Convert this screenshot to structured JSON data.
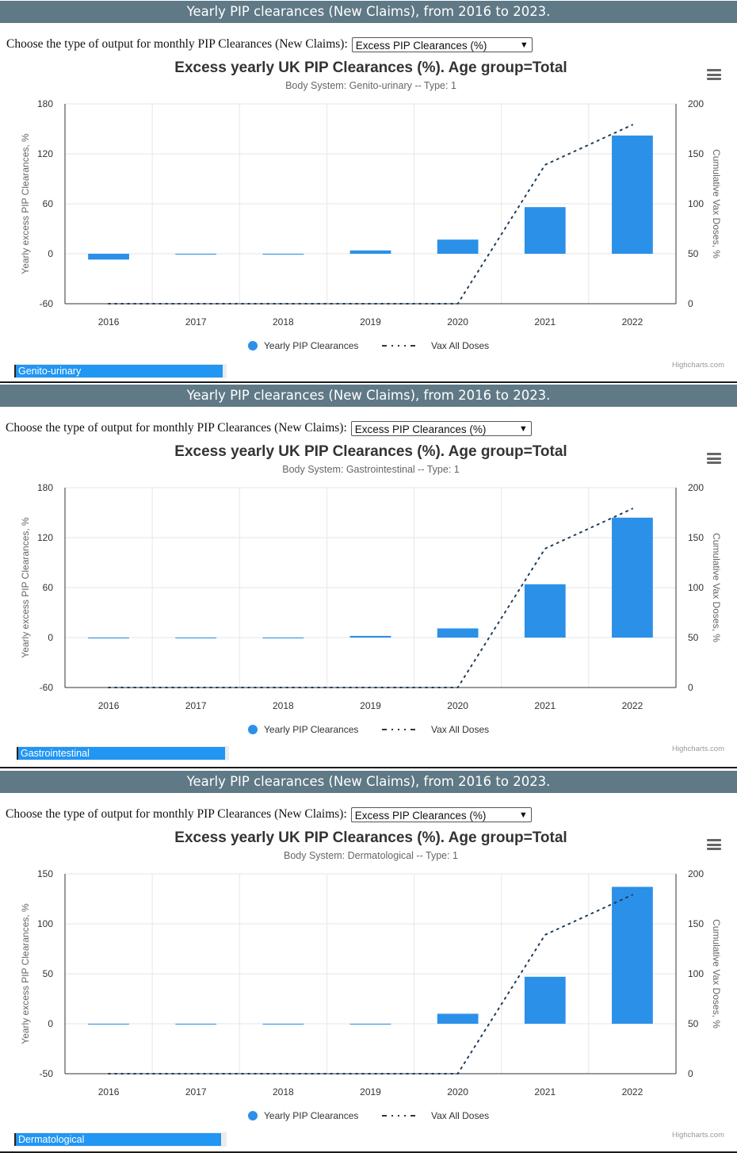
{
  "panels": [
    {
      "header": "Yearly PIP clearances (New Claims), from 2016 to 2023.",
      "choose_label": "Choose the type of output for monthly PIP Clearances (New Claims):",
      "select_value": "Excess PIP Clearances (%)",
      "body_system_tag": "Genito-urinary",
      "credits": "Highcharts.com",
      "chart_data": {
        "type": "bar",
        "title": "Excess yearly UK PIP Clearances (%). Age group=Total",
        "subtitle": "Body System: Genito-urinary -- Type: 1",
        "categories": [
          "2016",
          "2017",
          "2018",
          "2019",
          "2020",
          "2021",
          "2022"
        ],
        "ylabel": "Yearly excess PIP Clearances, %",
        "ylabel_right": "Cumulative Vax Doses, %",
        "ylim": [
          -60,
          180
        ],
        "yticks": [
          -60,
          0,
          60,
          120,
          180
        ],
        "ylim_right": [
          0,
          200
        ],
        "yticks_right": [
          0,
          50,
          100,
          150,
          200
        ],
        "grid": true,
        "legend": "bottom-center",
        "series": [
          {
            "name": "Yearly PIP Clearances",
            "type": "column",
            "color": "#2b90e8",
            "values": [
              -7,
              0,
              0,
              4,
              17,
              56,
              142
            ]
          },
          {
            "name": "Vax All Doses",
            "type": "line",
            "dash": "dot",
            "color": "#1f3b5a",
            "axis": "right",
            "values": [
              0,
              0,
              0,
              0,
              0,
              139,
              179
            ]
          }
        ]
      }
    },
    {
      "header": "Yearly PIP clearances (New Claims), from 2016 to 2023.",
      "choose_label": "Choose the type of output for monthly PIP Clearances (New Claims):",
      "select_value": "Excess PIP Clearances (%)",
      "body_system_tag": "Gastrointestinal",
      "credits": "Highcharts.com",
      "chart_data": {
        "type": "bar",
        "title": "Excess yearly UK PIP Clearances (%). Age group=Total",
        "subtitle": "Body System: Gastrointestinal -- Type: 1",
        "categories": [
          "2016",
          "2017",
          "2018",
          "2019",
          "2020",
          "2021",
          "2022"
        ],
        "ylabel": "Yearly excess PIP Clearances, %",
        "ylabel_right": "Cumulative Vax Doses, %",
        "ylim": [
          -60,
          180
        ],
        "yticks": [
          -60,
          0,
          60,
          120,
          180
        ],
        "ylim_right": [
          0,
          200
        ],
        "yticks_right": [
          0,
          50,
          100,
          150,
          200
        ],
        "grid": true,
        "legend": "bottom-center",
        "series": [
          {
            "name": "Yearly PIP Clearances",
            "type": "column",
            "color": "#2b90e8",
            "values": [
              -1,
              0,
              0,
              2,
              11,
              64,
              144
            ]
          },
          {
            "name": "Vax All Doses",
            "type": "line",
            "dash": "dot",
            "color": "#1f3b5a",
            "axis": "right",
            "values": [
              0,
              0,
              0,
              0,
              0,
              139,
              179
            ]
          }
        ]
      }
    },
    {
      "header": "Yearly PIP clearances (New Claims), from 2016 to 2023.",
      "choose_label": "Choose the type of output for monthly PIP Clearances (New Claims):",
      "select_value": "Excess PIP Clearances (%)",
      "body_system_tag": "Dermatological",
      "credits": "Highcharts.com",
      "chart_data": {
        "type": "bar",
        "title": "Excess yearly UK PIP Clearances (%). Age group=Total",
        "subtitle": "Body System: Dermatological -- Type: 1",
        "categories": [
          "2016",
          "2017",
          "2018",
          "2019",
          "2020",
          "2021",
          "2022"
        ],
        "ylabel": "Yearly excess PIP Clearances, %",
        "ylabel_right": "Cumulative Vax Doses, %",
        "ylim": [
          -50,
          150
        ],
        "yticks": [
          -50,
          0,
          50,
          100,
          150
        ],
        "ylim_right": [
          0,
          200
        ],
        "yticks_right": [
          0,
          50,
          100,
          150,
          200
        ],
        "grid": true,
        "legend": "bottom-center",
        "series": [
          {
            "name": "Yearly PIP Clearances",
            "type": "column",
            "color": "#2b90e8",
            "values": [
              0,
              0,
              0,
              0,
              10,
              47,
              137
            ]
          },
          {
            "name": "Vax All Doses",
            "type": "line",
            "dash": "dot",
            "color": "#1f3b5a",
            "axis": "right",
            "values": [
              0,
              0,
              0,
              0,
              0,
              139,
              179
            ]
          }
        ]
      }
    }
  ]
}
